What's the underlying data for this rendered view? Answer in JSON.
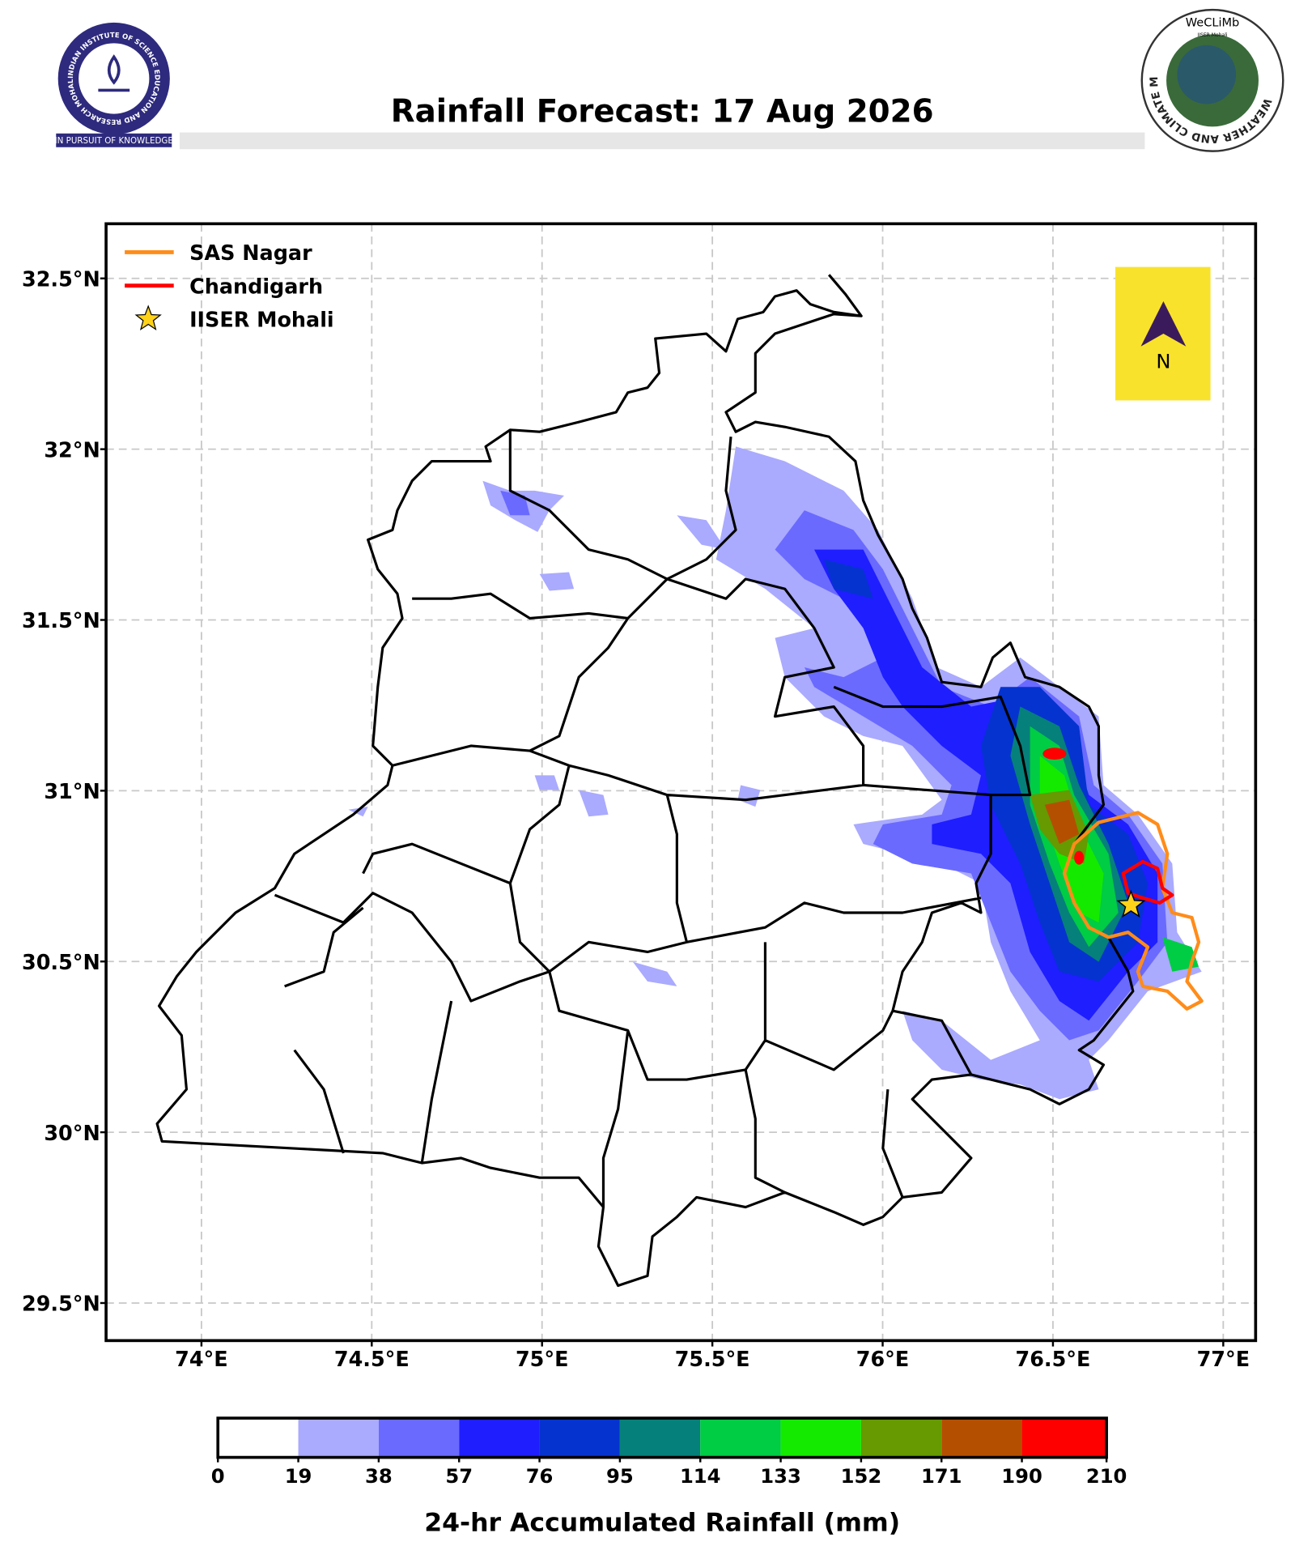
{
  "header": {
    "title": "Rainfall Forecast: 17 Aug 2026",
    "left_logo": {
      "ring_text": "INDIAN INSTITUTE OF SCIENCE EDUCATION AND RESEARCH MOHALI",
      "motto": "IN PURSUIT OF KNOWLEDGE"
    },
    "right_logo": {
      "name": "WeCLiMb",
      "ring_text": "WEATHER AND CLIMATE MODELLING LAB",
      "sub": "IISER Mohali"
    }
  },
  "chart_data": {
    "type": "map",
    "xlim": [
      73.72,
      77.095
    ],
    "ylim": [
      29.39,
      32.66
    ],
    "xticks": [
      {
        "value": 74,
        "label": "74°E"
      },
      {
        "value": 74.5,
        "label": "74.5°E"
      },
      {
        "value": 75,
        "label": "75°E"
      },
      {
        "value": 75.5,
        "label": "75.5°E"
      },
      {
        "value": 76,
        "label": "76°E"
      },
      {
        "value": 76.5,
        "label": "76.5°E"
      },
      {
        "value": 77,
        "label": "77°E"
      }
    ],
    "yticks": [
      {
        "value": 29.5,
        "label": "29.5°N"
      },
      {
        "value": 30,
        "label": "30°N"
      },
      {
        "value": 30.5,
        "label": "30.5°N"
      },
      {
        "value": 31,
        "label": "31°N"
      },
      {
        "value": 31.5,
        "label": "31.5°N"
      },
      {
        "value": 32,
        "label": "32°N"
      },
      {
        "value": 32.5,
        "label": "32.5°N"
      }
    ],
    "grid": true,
    "series": [
      {
        "name": "SAS Nagar",
        "color": "#ff8c1a"
      },
      {
        "name": "Chandigarh",
        "color": "#ff0000"
      },
      {
        "name": "IISER Mohali",
        "color": "#ffd21a",
        "x": [
          76.729
        ],
        "values": [
          30.665
        ]
      }
    ],
    "north_arrow": "N",
    "colorbar": {
      "label": "24-hr Accumulated Rainfall (mm)",
      "levels": [
        0,
        19,
        38,
        57,
        76,
        95,
        114,
        133,
        152,
        171,
        190,
        210
      ],
      "colors": [
        "#ffffff",
        "#aaaaff",
        "#6a6aff",
        "#1e1eff",
        "#0533cf",
        "#06807a",
        "#00cc44",
        "#14ea00",
        "#669a00",
        "#b54f00",
        "#ff0000"
      ]
    }
  }
}
